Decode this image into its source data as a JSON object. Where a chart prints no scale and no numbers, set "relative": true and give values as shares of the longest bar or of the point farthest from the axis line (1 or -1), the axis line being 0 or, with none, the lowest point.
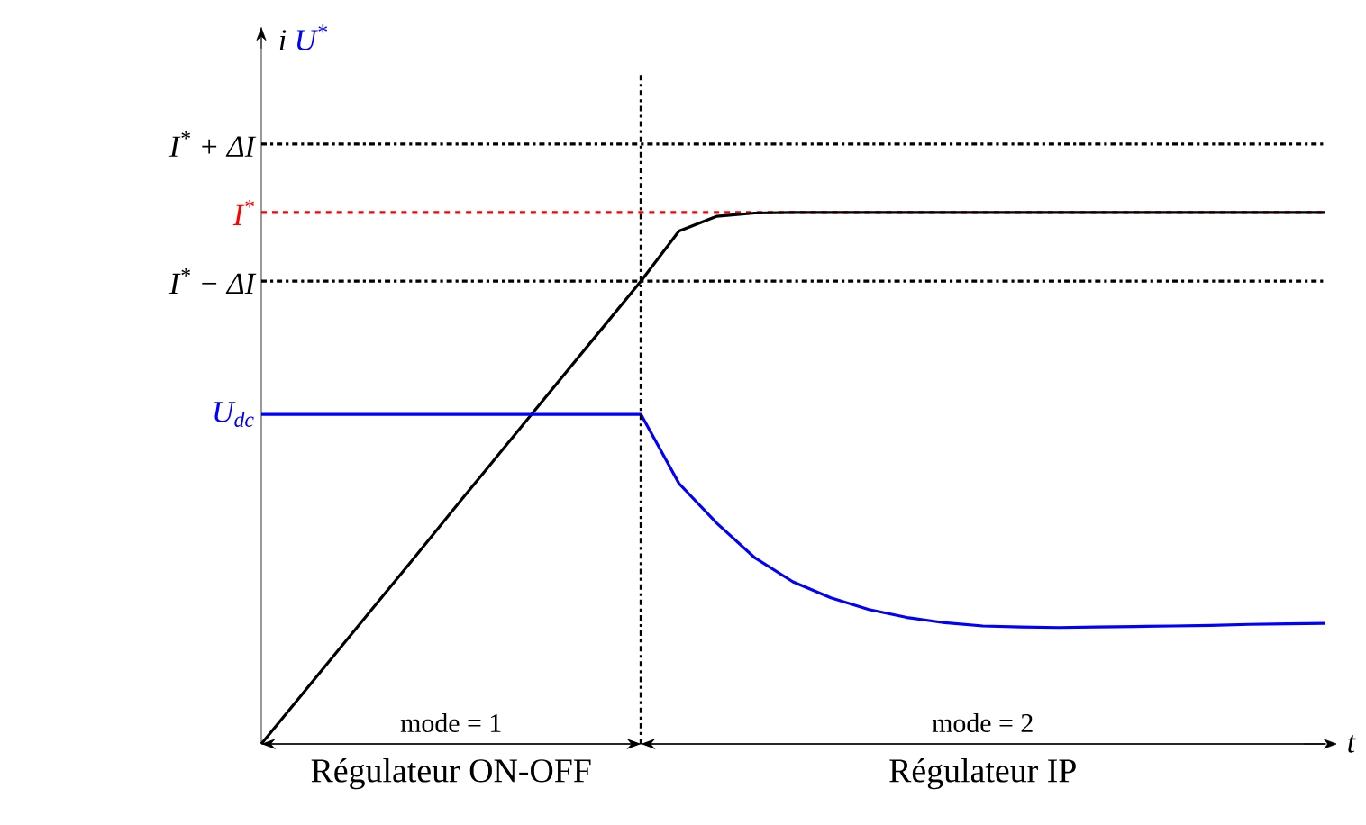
{
  "chart_data": {
    "type": "line",
    "relative": true,
    "xlabel": "t",
    "categories": [
      null,
      null,
      null,
      null,
      null,
      null,
      null,
      null,
      null,
      null,
      null,
      null,
      null,
      null,
      null,
      null,
      null,
      null,
      null,
      null,
      null,
      null,
      null,
      null,
      null,
      null,
      null,
      null,
      null
    ],
    "series": [
      {
        "name": "i",
        "color": "#000000",
        "values": [
          0,
          0.087,
          0.174,
          0.261,
          0.348,
          0.436,
          0.523,
          0.61,
          0.697,
          0.784,
          0.871,
          0.965,
          0.993,
          0.999,
          1,
          1,
          1,
          1,
          1,
          1,
          1,
          1,
          1,
          1,
          1,
          1,
          1,
          1,
          1
        ]
      },
      {
        "name": "U$^{*}$",
        "color": "#0000ff",
        "values": [
          0.62,
          0.62,
          0.62,
          0.62,
          0.62,
          0.62,
          0.62,
          0.62,
          0.62,
          0.62,
          0.62,
          0.49,
          0.415,
          0.35,
          0.305,
          0.275,
          0.253,
          0.238,
          0.228,
          0.222,
          0.22,
          0.219,
          0.22,
          0.221,
          0.222,
          0.223,
          0.225,
          0.226,
          0.227
        ]
      }
    ],
    "ref_lines": [
      {
        "axis": "y",
        "value": 1.129,
        "label": "I$^{*}$ + ΔI",
        "color": "#000000",
        "line_style": "dashdot"
      },
      {
        "axis": "y",
        "value": 1.0,
        "label": "I$^{*}$",
        "color": "#ff0000",
        "line_style": "dashed"
      },
      {
        "axis": "y",
        "value": 0.871,
        "label": "I$^{*}$ − ΔI",
        "color": "#000000",
        "line_style": "dashdot"
      }
    ],
    "annotations": [
      "U$_{dc}$",
      "mode = 1",
      "mode = 2",
      "Régulateur ON-OFF",
      "Régulateur IP"
    ]
  }
}
